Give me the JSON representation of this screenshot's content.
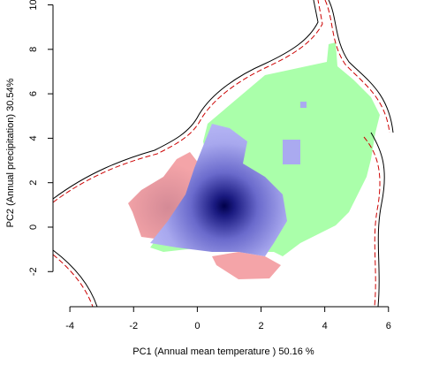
{
  "chart_data": {
    "type": "density",
    "x_label": "PC1 (Annual mean temperature ) 50.16 %",
    "y_label": "PC2 (Annual precipitation) 30.54%",
    "xlim": [
      -4.53,
      6.2
    ],
    "ylim": [
      -3.58,
      10.22
    ],
    "xticks": [
      -4,
      -2,
      0,
      2,
      4,
      6
    ],
    "yticks": [
      -2,
      0,
      2,
      4,
      6,
      8,
      10
    ]
  }
}
